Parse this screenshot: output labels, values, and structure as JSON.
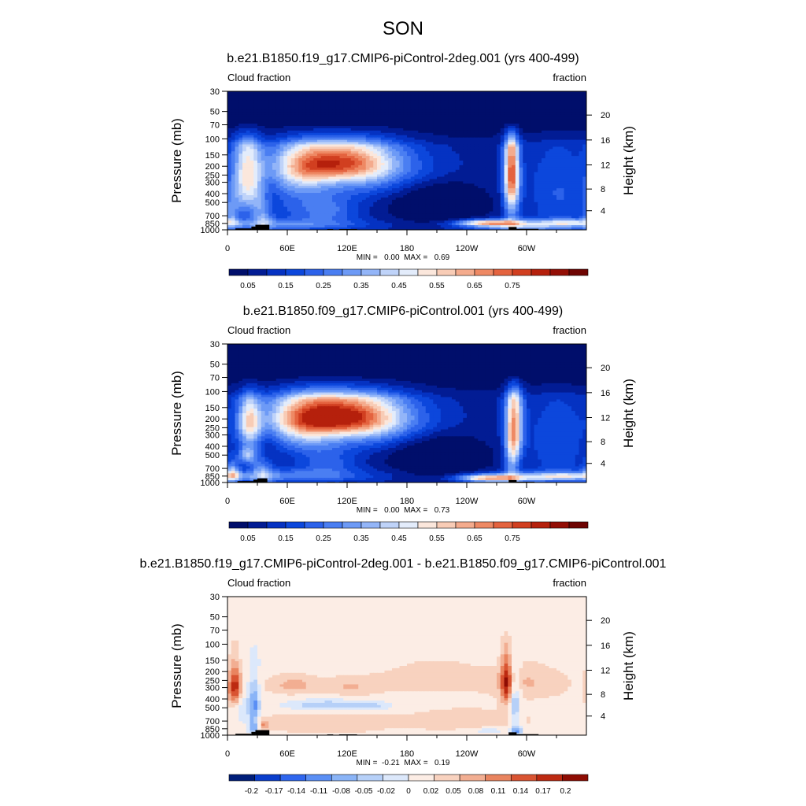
{
  "figure": {
    "title": "SON"
  },
  "colors": {
    "sequential": [
      "#000e6b",
      "#021c94",
      "#0532c2",
      "#0c47dc",
      "#2c62ea",
      "#4a7ef2",
      "#6d9af6",
      "#93b5f8",
      "#bfd3f9",
      "#e3ecfb",
      "#fbe7dc",
      "#f8ccb6",
      "#f4ab8d",
      "#ee8964",
      "#e4633f",
      "#d13f20",
      "#b5200c",
      "#930e05",
      "#6e0402"
    ],
    "diverging": [
      "#001e7a",
      "#0a3ecc",
      "#2f66ee",
      "#5a8ff5",
      "#8ab4f7",
      "#b6d0f8",
      "#dce8fb",
      "#fcede5",
      "#f8d2bf",
      "#f2ae92",
      "#e9845f",
      "#d95432",
      "#bd2a11",
      "#8e0c03"
    ],
    "land": "#000000"
  },
  "chart_data": [
    {
      "type": "heatmap",
      "title": "b.e21.B1850.f19_g17.CMIP6-piControl-2deg.001 (yrs 400-499)",
      "left_label": "Cloud fraction",
      "right_label": "fraction",
      "ylabel": "Pressure (mb)",
      "right_axis_label": "Height (km)",
      "xticks": [
        "0",
        "60E",
        "120E",
        "180",
        "120W",
        "60W"
      ],
      "xtick_lon": [
        0,
        60,
        120,
        180,
        240,
        300
      ],
      "xlim": [
        0,
        360
      ],
      "yticks": [
        "30",
        "50",
        "70",
        "100",
        "150",
        "200",
        "250",
        "300",
        "400",
        "500",
        "700",
        "850",
        "1000"
      ],
      "ytick_p": [
        30,
        50,
        70,
        100,
        150,
        200,
        250,
        300,
        400,
        500,
        700,
        850,
        1000
      ],
      "ylim_p": [
        1000,
        30
      ],
      "right_ticks": [
        "20",
        "16",
        "12",
        "8",
        "4"
      ],
      "right_tick_km": [
        20,
        16,
        12,
        8,
        4
      ],
      "stats": "MIN =   0.00  MAX =   0.69",
      "min": 0.0,
      "max": 0.69,
      "colorbar_labels": [
        "0.05",
        "0.15",
        "0.25",
        "0.35",
        "0.45",
        "0.55",
        "0.65",
        "0.75"
      ],
      "colorbar_label_index": [
        1,
        3,
        5,
        7,
        9,
        11,
        13,
        15
      ],
      "levels": [
        0,
        0.05,
        0.1,
        0.15,
        0.2,
        0.25,
        0.3,
        0.35,
        0.4,
        0.45,
        0.5,
        0.55,
        0.6,
        0.65,
        0.7,
        0.75,
        0.8
      ],
      "palette": "sequential",
      "features": [
        {
          "lon": 108,
          "p": 180,
          "sx": 36,
          "sp": 65,
          "v": 0.52
        },
        {
          "lon": 75,
          "p": 240,
          "sx": 22,
          "sp": 110,
          "v": 0.25
        },
        {
          "lon": 140,
          "p": 230,
          "sx": 30,
          "sp": 120,
          "v": 0.2
        },
        {
          "lon": 20,
          "p": 250,
          "sx": 10,
          "sp": 220,
          "v": 0.38
        },
        {
          "lon": 285,
          "p": 220,
          "sx": 5,
          "sp": 180,
          "v": 0.46
        },
        {
          "lon": 285,
          "p": 450,
          "sx": 6,
          "sp": 300,
          "v": 0.25
        },
        {
          "lon": 262,
          "p": 840,
          "sx": 22,
          "sp": 45,
          "v": 0.42
        },
        {
          "lon": 290,
          "p": 900,
          "sx": 40,
          "sp": 90,
          "v": 0.3
        },
        {
          "lon": 342,
          "p": 830,
          "sx": 18,
          "sp": 45,
          "v": 0.22
        },
        {
          "lon": 55,
          "p": 880,
          "sx": 60,
          "sp": 90,
          "v": 0.2
        },
        {
          "lon": 60,
          "p": 500,
          "sx": 45,
          "sp": 200,
          "v": 0.1
        },
        {
          "lon": 100,
          "p": 620,
          "sx": 22,
          "sp": 150,
          "v": 0.14
        },
        {
          "lon": 200,
          "p": 210,
          "sx": 32,
          "sp": 90,
          "v": 0.1
        },
        {
          "lon": 330,
          "p": 450,
          "sx": 22,
          "sp": 300,
          "v": 0.1
        },
        {
          "lon": 35,
          "p": 700,
          "sx": 7,
          "sp": 250,
          "v": 0.2
        },
        {
          "lon": 4,
          "p": 700,
          "sx": 5,
          "sp": 200,
          "v": 0.18
        }
      ],
      "lows": [
        {
          "lon": 212,
          "p": 500,
          "sx": 34,
          "sp": 260,
          "v": 0.14
        },
        {
          "lon": 40,
          "p": 450,
          "sx": 8,
          "sp": 150,
          "v": 0.08
        }
      ],
      "land": [
        {
          "lon0": 8,
          "lon1": 24,
          "p": 965
        },
        {
          "lon0": 24,
          "lon1": 28,
          "p": 920
        },
        {
          "lon0": 28,
          "lon1": 42,
          "p": 880
        },
        {
          "lon0": 100,
          "lon1": 106,
          "p": 980
        },
        {
          "lon0": 112,
          "lon1": 130,
          "p": 980
        },
        {
          "lon0": 282,
          "lon1": 290,
          "p": 930
        },
        {
          "lon0": 286,
          "lon1": 312,
          "p": 975
        }
      ]
    },
    {
      "type": "heatmap",
      "title": "b.e21.B1850.f09_g17.CMIP6-piControl.001 (yrs 400-499)",
      "left_label": "Cloud fraction",
      "right_label": "fraction",
      "ylabel": "Pressure (mb)",
      "right_axis_label": "Height (km)",
      "xticks": [
        "0",
        "60E",
        "120E",
        "180",
        "120W",
        "60W"
      ],
      "xtick_lon": [
        0,
        60,
        120,
        180,
        240,
        300
      ],
      "xlim": [
        0,
        360
      ],
      "yticks": [
        "30",
        "50",
        "70",
        "100",
        "150",
        "200",
        "250",
        "300",
        "400",
        "500",
        "700",
        "850",
        "1000"
      ],
      "ytick_p": [
        30,
        50,
        70,
        100,
        150,
        200,
        250,
        300,
        400,
        500,
        700,
        850,
        1000
      ],
      "ylim_p": [
        1000,
        30
      ],
      "right_ticks": [
        "20",
        "16",
        "12",
        "8",
        "4"
      ],
      "right_tick_km": [
        20,
        16,
        12,
        8,
        4
      ],
      "stats": "MIN =   0.00  MAX =   0.73",
      "min": 0.0,
      "max": 0.73,
      "colorbar_labels": [
        "0.05",
        "0.15",
        "0.25",
        "0.35",
        "0.45",
        "0.55",
        "0.65",
        "0.75"
      ],
      "colorbar_label_index": [
        1,
        3,
        5,
        7,
        9,
        11,
        13,
        15
      ],
      "levels": [
        0,
        0.05,
        0.1,
        0.15,
        0.2,
        0.25,
        0.3,
        0.35,
        0.4,
        0.45,
        0.5,
        0.55,
        0.6,
        0.65,
        0.7,
        0.75,
        0.8
      ],
      "palette": "sequential",
      "features": [
        {
          "lon": 108,
          "p": 185,
          "sx": 40,
          "sp": 70,
          "v": 0.6
        },
        {
          "lon": 75,
          "p": 250,
          "sx": 24,
          "sp": 130,
          "v": 0.28
        },
        {
          "lon": 140,
          "p": 235,
          "sx": 32,
          "sp": 120,
          "v": 0.22
        },
        {
          "lon": 22,
          "p": 220,
          "sx": 8,
          "sp": 100,
          "v": 0.4
        },
        {
          "lon": 20,
          "p": 500,
          "sx": 6,
          "sp": 80,
          "v": 0.3
        },
        {
          "lon": 288,
          "p": 230,
          "sx": 6,
          "sp": 200,
          "v": 0.42
        },
        {
          "lon": 285,
          "p": 500,
          "sx": 5,
          "sp": 300,
          "v": 0.25
        },
        {
          "lon": 262,
          "p": 900,
          "sx": 22,
          "sp": 60,
          "v": 0.45
        },
        {
          "lon": 300,
          "p": 880,
          "sx": 35,
          "sp": 80,
          "v": 0.25
        },
        {
          "lon": 340,
          "p": 850,
          "sx": 20,
          "sp": 50,
          "v": 0.2
        },
        {
          "lon": 60,
          "p": 850,
          "sx": 60,
          "sp": 100,
          "v": 0.2
        },
        {
          "lon": 100,
          "p": 600,
          "sx": 22,
          "sp": 160,
          "v": 0.14
        },
        {
          "lon": 200,
          "p": 210,
          "sx": 32,
          "sp": 90,
          "v": 0.1
        },
        {
          "lon": 330,
          "p": 450,
          "sx": 22,
          "sp": 300,
          "v": 0.1
        },
        {
          "lon": 35,
          "p": 750,
          "sx": 8,
          "sp": 250,
          "v": 0.2
        },
        {
          "lon": 5,
          "p": 800,
          "sx": 5,
          "sp": 150,
          "v": 0.3
        }
      ],
      "lows": [
        {
          "lon": 212,
          "p": 500,
          "sx": 34,
          "sp": 260,
          "v": 0.14
        },
        {
          "lon": 40,
          "p": 420,
          "sx": 7,
          "sp": 130,
          "v": 0.08
        }
      ],
      "land": [
        {
          "lon0": 10,
          "lon1": 26,
          "p": 965
        },
        {
          "lon0": 26,
          "lon1": 30,
          "p": 930
        },
        {
          "lon0": 30,
          "lon1": 40,
          "p": 900
        },
        {
          "lon0": 100,
          "lon1": 108,
          "p": 985
        },
        {
          "lon0": 112,
          "lon1": 130,
          "p": 985
        },
        {
          "lon0": 282,
          "lon1": 290,
          "p": 940
        },
        {
          "lon0": 286,
          "lon1": 308,
          "p": 980
        }
      ]
    },
    {
      "type": "heatmap",
      "title": "b.e21.B1850.f19_g17.CMIP6-piControl-2deg.001 - b.e21.B1850.f09_g17.CMIP6-piControl.001",
      "left_label": "Cloud fraction",
      "right_label": "fraction",
      "ylabel": "Pressure (mb)",
      "right_axis_label": "Height (km)",
      "xticks": [
        "0",
        "60E",
        "120E",
        "180",
        "120W",
        "60W"
      ],
      "xtick_lon": [
        0,
        60,
        120,
        180,
        240,
        300
      ],
      "xlim": [
        0,
        360
      ],
      "yticks": [
        "30",
        "50",
        "70",
        "100",
        "150",
        "200",
        "250",
        "300",
        "400",
        "500",
        "700",
        "850",
        "1000"
      ],
      "ytick_p": [
        30,
        50,
        70,
        100,
        150,
        200,
        250,
        300,
        400,
        500,
        700,
        850,
        1000
      ],
      "ylim_p": [
        1000,
        30
      ],
      "right_ticks": [
        "20",
        "16",
        "12",
        "8",
        "4"
      ],
      "right_tick_km": [
        20,
        16,
        12,
        8,
        4
      ],
      "stats": "MIN =  -0.21  MAX =   0.19",
      "min": -0.21,
      "max": 0.19,
      "colorbar_labels": [
        "-0.2",
        "-0.17",
        "-0.14",
        "-0.11",
        "-0.08",
        "-0.05",
        "-0.02",
        "0",
        "0.02",
        "0.05",
        "0.08",
        "0.11",
        "0.14",
        "0.17",
        "0.2"
      ],
      "colorbar_label_index": [
        1,
        2,
        3,
        4,
        5,
        6,
        7,
        7,
        8,
        9,
        10,
        11,
        12,
        13,
        14
      ],
      "levels": [
        -0.23,
        -0.2,
        -0.17,
        -0.14,
        -0.11,
        -0.08,
        -0.05,
        -0.02,
        0.02,
        0.05,
        0.08,
        0.11,
        0.14,
        0.17,
        0.2
      ],
      "palette": "diverging",
      "base": 0.012,
      "features": [
        {
          "lon": 8,
          "p": 300,
          "sx": 5,
          "sp": 110,
          "v": 0.16
        },
        {
          "lon": 280,
          "p": 280,
          "sx": 4,
          "sp": 130,
          "v": 0.14
        },
        {
          "lon": 66,
          "p": 280,
          "sx": 16,
          "sp": 50,
          "v": 0.05
        },
        {
          "lon": 123,
          "p": 300,
          "sx": 20,
          "sp": 50,
          "v": 0.04
        },
        {
          "lon": 36,
          "p": 760,
          "sx": 4,
          "sp": 60,
          "v": 0.08
        },
        {
          "lon": 210,
          "p": 210,
          "sx": 38,
          "sp": 70,
          "v": 0.04
        },
        {
          "lon": 300,
          "p": 260,
          "sx": 25,
          "sp": 80,
          "v": 0.04
        },
        {
          "lon": 100,
          "p": 720,
          "sx": 40,
          "sp": 150,
          "v": 0.03
        },
        {
          "lon": 240,
          "p": 700,
          "sx": 40,
          "sp": 120,
          "v": 0.03
        },
        {
          "lon": 15,
          "p": 500,
          "sx": 6,
          "sp": 200,
          "v": -0.06
        },
        {
          "lon": 100,
          "p": 470,
          "sx": 35,
          "sp": 55,
          "v": -0.09
        },
        {
          "lon": 150,
          "p": 480,
          "sx": 14,
          "sp": 40,
          "v": -0.04
        },
        {
          "lon": 27,
          "p": 450,
          "sx": 4,
          "sp": 180,
          "v": -0.12
        },
        {
          "lon": 26,
          "p": 830,
          "sx": 4,
          "sp": 120,
          "v": -0.11
        },
        {
          "lon": 288,
          "p": 450,
          "sx": 4,
          "sp": 200,
          "v": -0.1
        },
        {
          "lon": 290,
          "p": 900,
          "sx": 4,
          "sp": 90,
          "v": -0.12
        },
        {
          "lon": 262,
          "p": 890,
          "sx": 14,
          "sp": 40,
          "v": -0.06
        },
        {
          "lon": 60,
          "p": 140,
          "sx": 60,
          "sp": 50,
          "v": -0.02
        },
        {
          "lon": 220,
          "p": 140,
          "sx": 60,
          "sp": 50,
          "v": -0.02
        }
      ],
      "lows": [],
      "land": [
        {
          "lon0": 8,
          "lon1": 24,
          "p": 965
        },
        {
          "lon0": 24,
          "lon1": 28,
          "p": 920
        },
        {
          "lon0": 28,
          "lon1": 42,
          "p": 880
        },
        {
          "lon0": 100,
          "lon1": 106,
          "p": 980
        },
        {
          "lon0": 112,
          "lon1": 130,
          "p": 980
        },
        {
          "lon0": 282,
          "lon1": 290,
          "p": 930
        },
        {
          "lon0": 286,
          "lon1": 312,
          "p": 975
        }
      ]
    }
  ]
}
